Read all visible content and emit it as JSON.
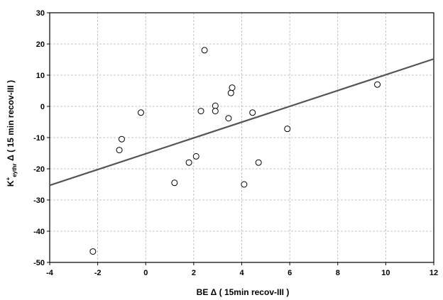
{
  "chart_data": {
    "type": "scatter",
    "xlabel": "BE Δ  (  15min recov-III )",
    "ylabel": {
      "prefix": "K",
      "sup": "+",
      "sub": "eythr",
      "rest": " Δ  ( 15 min recov-III )"
    },
    "xlim": [
      -4,
      12
    ],
    "ylim": [
      -50,
      30
    ],
    "x_ticks": [
      -4,
      -2,
      0,
      2,
      4,
      6,
      8,
      10,
      12
    ],
    "y_ticks": [
      30,
      20,
      10,
      0,
      -10,
      -20,
      -30,
      -40,
      -50
    ],
    "grid": true,
    "points": [
      {
        "x": -2.2,
        "y": -46.5
      },
      {
        "x": -1.1,
        "y": -14.0
      },
      {
        "x": -1.0,
        "y": -10.5
      },
      {
        "x": -0.2,
        "y": -2.0
      },
      {
        "x": 1.2,
        "y": -24.5
      },
      {
        "x": 1.8,
        "y": -18.0
      },
      {
        "x": 2.1,
        "y": -16.0
      },
      {
        "x": 2.3,
        "y": -1.5
      },
      {
        "x": 2.45,
        "y": 18.0
      },
      {
        "x": 2.9,
        "y": 0.2
      },
      {
        "x": 2.9,
        "y": -1.5
      },
      {
        "x": 3.45,
        "y": -3.8
      },
      {
        "x": 3.55,
        "y": 4.3
      },
      {
        "x": 3.6,
        "y": 6.0
      },
      {
        "x": 4.1,
        "y": -25.0
      },
      {
        "x": 4.45,
        "y": -2.0
      },
      {
        "x": 4.7,
        "y": -18.0
      },
      {
        "x": 5.9,
        "y": -7.2
      },
      {
        "x": 9.65,
        "y": 7.0
      }
    ],
    "fit_line": {
      "x": [
        -4,
        12
      ],
      "y": [
        -25.3,
        15.2
      ]
    }
  }
}
